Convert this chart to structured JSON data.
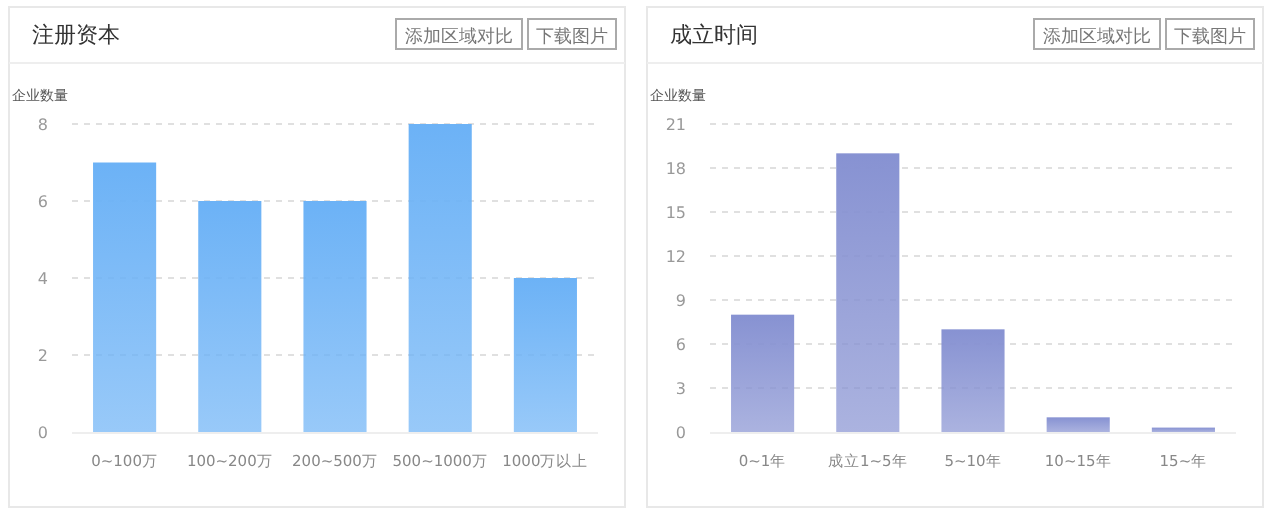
{
  "chart_data": [
    {
      "type": "bar",
      "title": "注册资本",
      "annotations": [
        "添加区域对比",
        "下载图片"
      ],
      "ylabel": "企业数量",
      "categories": [
        "0~100万",
        "100~200万",
        "200~500万",
        "500~1000万",
        "1000万以上"
      ],
      "series": [
        {
          "color": "#6cb2f6",
          "values": [
            7,
            6,
            6,
            8,
            4
          ]
        }
      ],
      "ylim": [
        0,
        8
      ],
      "yticks": [
        0,
        2,
        4,
        6,
        8
      ],
      "grid": "y"
    },
    {
      "type": "bar",
      "title": "成立时间",
      "annotations": [
        "添加区域对比",
        "下载图片"
      ],
      "ylabel": "企业数量",
      "categories": [
        "0~1年",
        "成立1~5年",
        "5~10年",
        "10~15年",
        "15~年"
      ],
      "series": [
        {
          "color": "#8792d2",
          "values": [
            8,
            19,
            7,
            1,
            0.3
          ]
        }
      ],
      "ylim": [
        0,
        21
      ],
      "yticks": [
        0,
        3,
        6,
        9,
        12,
        15,
        18,
        21
      ],
      "grid": "y"
    }
  ]
}
